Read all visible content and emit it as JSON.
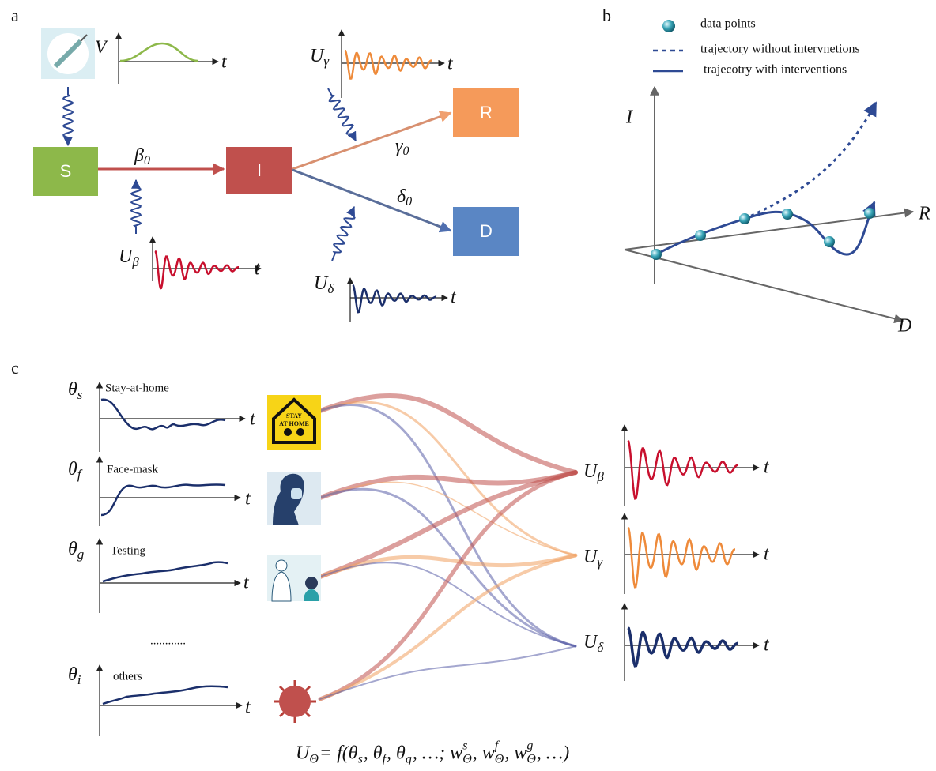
{
  "panel_a": {
    "label": "a",
    "nodes": [
      {
        "label": "S"
      },
      {
        "label": "I"
      },
      {
        "label": "R"
      },
      {
        "label": "D"
      }
    ],
    "rates": [
      {
        "symbol": "β",
        "subscript": "0"
      },
      {
        "symbol": "γ",
        "subscript": "0"
      },
      {
        "symbol": "δ",
        "subscript": "0"
      }
    ],
    "controls": [
      {
        "symbol": "V",
        "axis": "t"
      },
      {
        "symbol": "U",
        "subscript": "γ",
        "axis": "t"
      },
      {
        "symbol": "U",
        "subscript": "β",
        "axis": "t"
      },
      {
        "symbol": "U",
        "subscript": "δ",
        "axis": "t"
      }
    ]
  },
  "panel_b": {
    "label": "b",
    "legend": [
      "data points",
      "trajectory without intervnetions",
      "trajecotry with interventions"
    ],
    "axes": [
      "I",
      "R",
      "D"
    ]
  },
  "panel_c": {
    "label": "c",
    "inputs": [
      {
        "symbol": "θ",
        "subscript": "s",
        "name": "Stay-at-home",
        "axis": "t"
      },
      {
        "symbol": "θ",
        "subscript": "f",
        "name": "Face-mask",
        "axis": "t"
      },
      {
        "symbol": "θ",
        "subscript": "g",
        "name": "Testing",
        "axis": "t"
      },
      {
        "symbol": "θ",
        "subscript": "i",
        "name": "others",
        "axis": "t"
      }
    ],
    "ellipsis": "............",
    "icon_text": [
      "STAY",
      "AT HOME"
    ],
    "outputs": [
      {
        "symbol": "U",
        "subscript": "β",
        "axis": "t"
      },
      {
        "symbol": "U",
        "subscript": "γ",
        "axis": "t"
      },
      {
        "symbol": "U",
        "subscript": "δ",
        "axis": "t"
      }
    ],
    "formula": [
      {
        "text": "U"
      },
      {
        "sub": "Θ"
      },
      {
        "text": " = f(θ"
      },
      {
        "sub": "s"
      },
      {
        "text": ", θ"
      },
      {
        "sub": "f"
      },
      {
        "text": ", θ"
      },
      {
        "sub": "g"
      },
      {
        "text": ", …; w"
      },
      {
        "sub": "Θ",
        "sup": "s"
      },
      {
        "text": ", w"
      },
      {
        "sub": "Θ",
        "sup": "f"
      },
      {
        "text": ", w"
      },
      {
        "sub": "Θ",
        "sup": "g"
      },
      {
        "text": ", …)"
      }
    ]
  }
}
